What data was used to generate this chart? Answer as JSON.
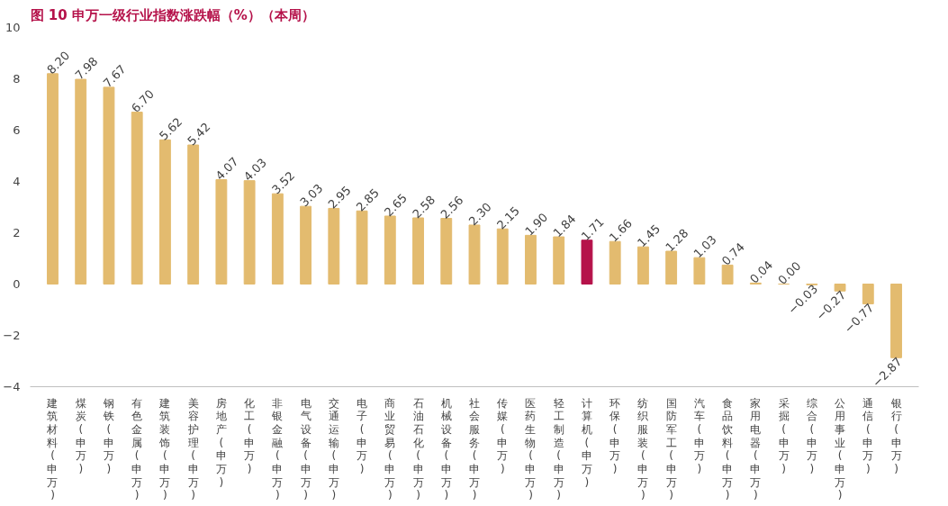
{
  "chart_data": {
    "type": "bar",
    "title": "图 10  申万一级行业指数涨跌幅（%）（本周）",
    "categories": [
      "建筑材料(申万)",
      "煤炭(申万)",
      "钢铁(申万)",
      "有色金属(申万)",
      "建筑装饰(申万)",
      "美容护理(申万)",
      "房地产(申万)",
      "化工(申万)",
      "非银金融(申万)",
      "电气设备(申万)",
      "交通运输(申万)",
      "电子(申万)",
      "商业贸易(申万)",
      "石油石化(申万)",
      "机械设备(申万)",
      "社会服务(申万)",
      "传媒(申万)",
      "医药生物(申万)",
      "轻工制造(申万)",
      "计算机(申万)",
      "环保(申万)",
      "纺织服装(申万)",
      "国防军工(申万)",
      "汽车(申万)",
      "食品饮料(申万)",
      "家用电器(申万)",
      "采掘(申万)",
      "综合(申万)",
      "公用事业(申万)",
      "通信(申万)",
      "银行(申万)"
    ],
    "values": [
      8.2,
      7.98,
      7.67,
      6.7,
      5.62,
      5.42,
      4.07,
      4.03,
      3.52,
      3.03,
      2.95,
      2.85,
      2.65,
      2.58,
      2.56,
      2.3,
      2.15,
      1.9,
      1.84,
      1.71,
      1.66,
      1.45,
      1.28,
      1.03,
      0.74,
      0.04,
      0.0,
      -0.03,
      -0.27,
      -0.77,
      -2.87
    ],
    "colors": [
      "#e3bb6f",
      "#e3bb6f",
      "#e3bb6f",
      "#e3bb6f",
      "#e3bb6f",
      "#e3bb6f",
      "#e3bb6f",
      "#e3bb6f",
      "#e3bb6f",
      "#e3bb6f",
      "#e3bb6f",
      "#e3bb6f",
      "#e3bb6f",
      "#e3bb6f",
      "#e3bb6f",
      "#e3bb6f",
      "#e3bb6f",
      "#e3bb6f",
      "#e3bb6f",
      "#b5124a",
      "#e3bb6f",
      "#e3bb6f",
      "#e3bb6f",
      "#e3bb6f",
      "#e3bb6f",
      "#e3bb6f",
      "#e3bb6f",
      "#e3bb6f",
      "#e3bb6f",
      "#e3bb6f",
      "#e3bb6f"
    ],
    "value_labels": [
      "8.20",
      "7.98",
      "7.67",
      "6.70",
      "5.62",
      "5.42",
      "4.07",
      "4.03",
      "3.52",
      "3.03",
      "2.95",
      "2.85",
      "2.65",
      "2.58",
      "2.56",
      "2.30",
      "2.15",
      "1.90",
      "1.84",
      "1.71",
      "1.66",
      "1.45",
      "1.28",
      "1.03",
      "0.74",
      "0.04",
      "0.00",
      "−0.03",
      "−0.27",
      "−0.77",
      "−2.87"
    ],
    "ylim": [
      -4,
      10
    ],
    "yticks": [
      -4,
      -2,
      0,
      2,
      4,
      6,
      8,
      10
    ]
  }
}
